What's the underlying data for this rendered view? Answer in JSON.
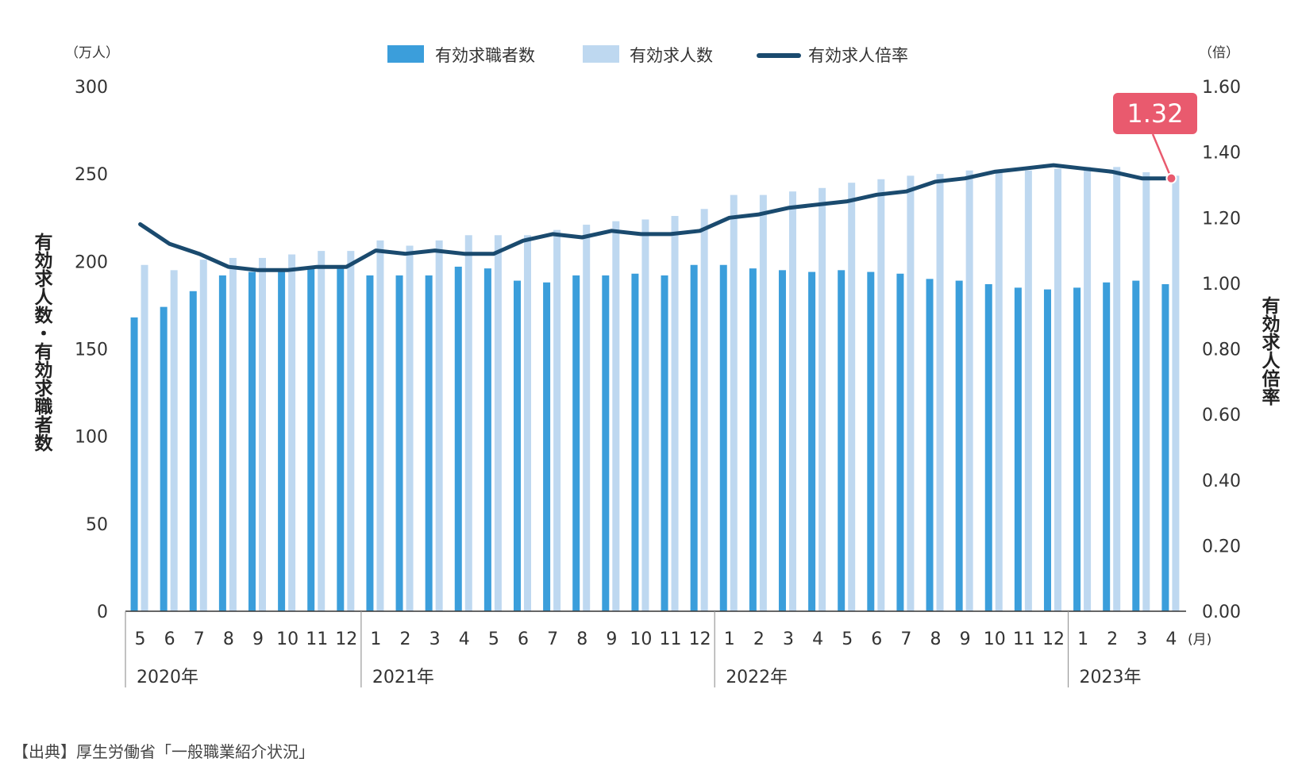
{
  "chart_data": {
    "type": "bar",
    "left_unit": "（万人）",
    "right_unit": "（倍）",
    "month_unit": "(月)",
    "left_axis_title": "有効求人数・有効求職者数",
    "right_axis_title": "有効求人倍率",
    "ylim_left": [
      0,
      300
    ],
    "ylim_right": [
      0,
      1.6
    ],
    "y_ticks_left": [
      "300",
      "250",
      "200",
      "150",
      "100",
      "50",
      "0"
    ],
    "y_ticks_right": [
      "1.60",
      "1.40",
      "1.20",
      "1.00",
      "0.80",
      "0.60",
      "0.40",
      "0.20",
      "0.00"
    ],
    "categories": [
      "5",
      "6",
      "7",
      "8",
      "9",
      "10",
      "11",
      "12",
      "1",
      "2",
      "3",
      "4",
      "5",
      "6",
      "7",
      "8",
      "9",
      "10",
      "11",
      "12",
      "1",
      "2",
      "3",
      "4",
      "5",
      "6",
      "7",
      "8",
      "9",
      "10",
      "11",
      "12",
      "1",
      "2",
      "3",
      "4"
    ],
    "years": [
      {
        "label": "2020年",
        "start": 0,
        "count": 8
      },
      {
        "label": "2021年",
        "start": 8,
        "count": 12
      },
      {
        "label": "2022年",
        "start": 20,
        "count": 12
      },
      {
        "label": "2023年",
        "start": 32,
        "count": 4
      }
    ],
    "series": [
      {
        "name": "有効求職者数",
        "kind": "bar",
        "axis": "left",
        "color": "#3b9edb",
        "values": [
          168,
          174,
          183,
          192,
          194,
          195,
          196,
          197,
          192,
          192,
          192,
          197,
          196,
          189,
          188,
          192,
          192,
          193,
          192,
          198,
          198,
          196,
          195,
          194,
          195,
          194,
          193,
          190,
          189,
          187,
          185,
          184,
          185,
          188,
          189,
          187
        ]
      },
      {
        "name": "有効求人数",
        "kind": "bar",
        "axis": "left",
        "color": "#bed8f0",
        "values": [
          198,
          195,
          201,
          202,
          202,
          204,
          206,
          206,
          212,
          209,
          212,
          215,
          215,
          215,
          218,
          221,
          223,
          224,
          226,
          230,
          238,
          238,
          240,
          242,
          245,
          247,
          249,
          250,
          252,
          251,
          252,
          253,
          254,
          254,
          251,
          249
        ]
      },
      {
        "name": "有効求人倍率",
        "kind": "line",
        "axis": "right",
        "color": "#1a4a6e",
        "values": [
          1.18,
          1.12,
          1.09,
          1.05,
          1.04,
          1.04,
          1.05,
          1.05,
          1.1,
          1.09,
          1.1,
          1.09,
          1.09,
          1.13,
          1.15,
          1.14,
          1.16,
          1.15,
          1.15,
          1.16,
          1.2,
          1.21,
          1.23,
          1.24,
          1.25,
          1.27,
          1.28,
          1.31,
          1.32,
          1.34,
          1.35,
          1.36,
          1.35,
          1.34,
          1.32,
          1.32
        ]
      }
    ],
    "callout": {
      "label": "1.32",
      "index": 35,
      "color": "#e95a6e"
    },
    "source": "【出典】厚生労働省「一般職業紹介状況」"
  }
}
